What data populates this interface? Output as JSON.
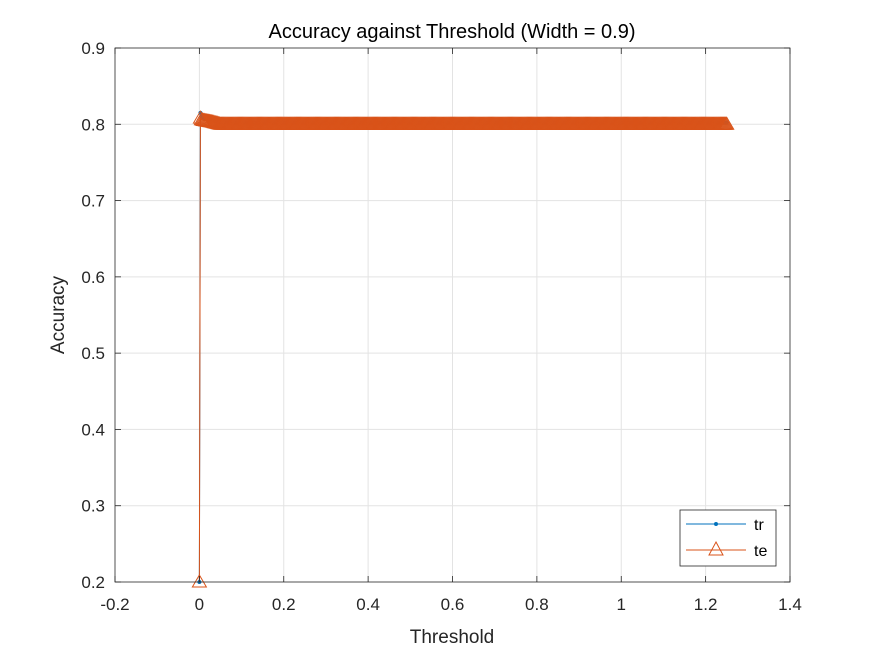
{
  "chart_data": {
    "type": "line",
    "title": "Accuracy against Threshold (Width = 0.9)",
    "xlabel": "Threshold",
    "ylabel": "Accuracy",
    "xlim": [
      -0.2,
      1.4
    ],
    "ylim": [
      0.2,
      0.9
    ],
    "xticks": [
      -0.2,
      0,
      0.2,
      0.4,
      0.6,
      0.8,
      1,
      1.2,
      1.4
    ],
    "xtick_labels": [
      "-0.2",
      "0",
      "0.2",
      "0.4",
      "0.6",
      "0.8",
      "1",
      "1.2",
      "1.4"
    ],
    "yticks": [
      0.2,
      0.3,
      0.4,
      0.5,
      0.6,
      0.7,
      0.8,
      0.9
    ],
    "ytick_labels": [
      "0.2",
      "0.3",
      "0.4",
      "0.5",
      "0.6",
      "0.7",
      "0.8",
      "0.9"
    ],
    "grid": true,
    "legend_position": "bottom-right",
    "series": [
      {
        "name": "tr",
        "color": "#0072BD",
        "marker": "point",
        "x_range": [
          0,
          1.25
        ],
        "x_step": 0.0025,
        "x": [
          0,
          0.0025,
          0.005,
          0.01,
          0.02,
          0.03,
          0.05,
          0.08,
          0.1,
          1.25
        ],
        "y": [
          0.2,
          0.815,
          0.81,
          0.808,
          0.806,
          0.805,
          0.803,
          0.802,
          0.802,
          0.802
        ]
      },
      {
        "name": "te",
        "color": "#D95319",
        "marker": "triangle",
        "x_range": [
          0,
          1.25
        ],
        "x_step": 0.0025,
        "x": [
          0,
          0.0025,
          0.005,
          0.01,
          0.02,
          0.03,
          0.05,
          0.08,
          0.1,
          1.25
        ],
        "y": [
          0.2,
          0.808,
          0.806,
          0.805,
          0.804,
          0.803,
          0.8,
          0.8,
          0.8,
          0.8
        ]
      }
    ]
  }
}
